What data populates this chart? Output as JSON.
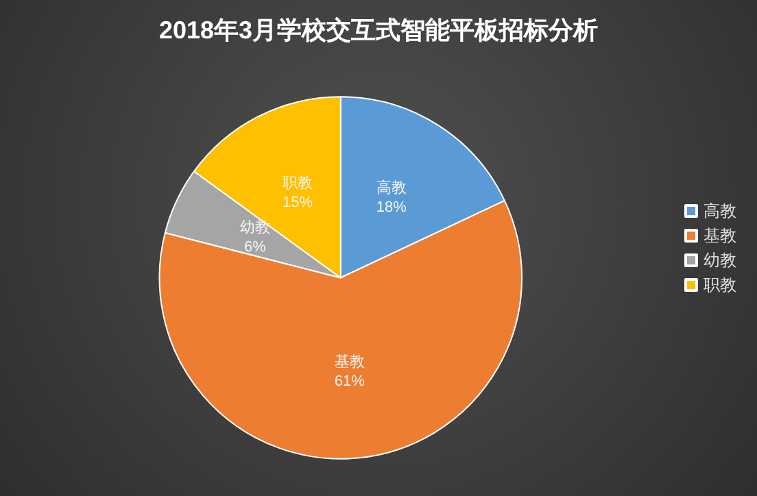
{
  "chart_data": {
    "type": "pie",
    "title": "2018年3月学校交互式智能平板招标分析",
    "categories": [
      "高教",
      "基教",
      "幼教",
      "职教"
    ],
    "values": [
      18,
      61,
      6,
      15
    ],
    "value_labels": [
      "18%",
      "61%",
      "6%",
      "15%"
    ],
    "colors": [
      "#5b9bd5",
      "#ed7d31",
      "#a5a5a5",
      "#ffc000"
    ],
    "legend": "right"
  }
}
